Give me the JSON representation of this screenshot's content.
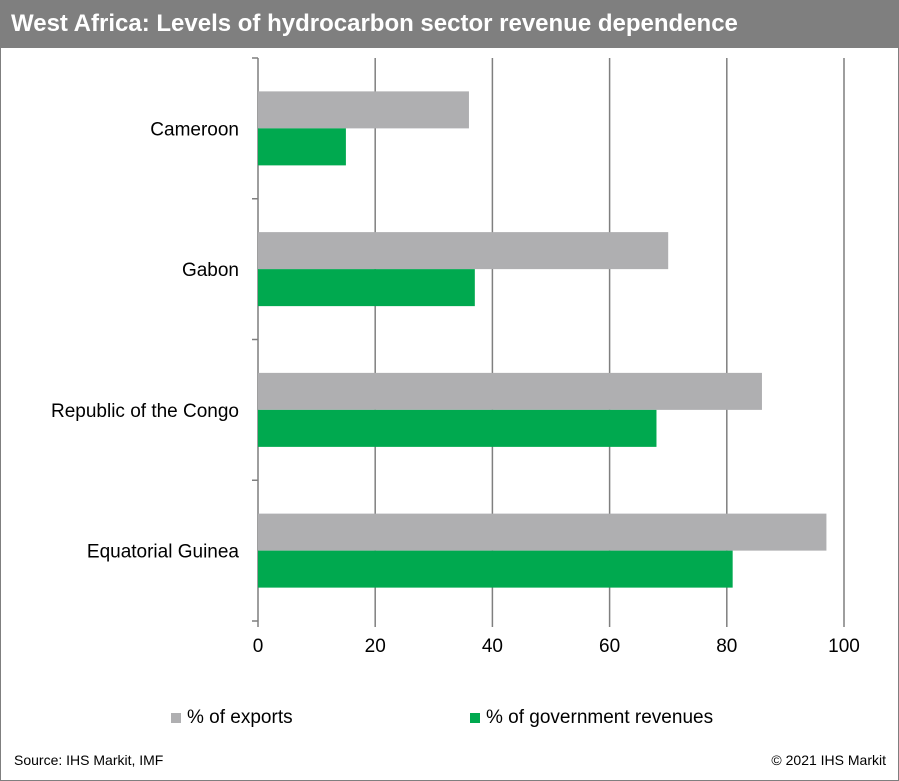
{
  "title": "West Africa: Levels of hydrocarbon sector revenue dependence",
  "source": "Source: IHS Markit, IMF",
  "copyright": "© 2021 IHS Markit",
  "colors": {
    "exports": "#afafb1",
    "government": "#00a94f",
    "grid": "#7f7f7f",
    "header": "#7f7f7f"
  },
  "chart_data": {
    "type": "bar",
    "orientation": "horizontal",
    "categories": [
      "Cameroon",
      "Gabon",
      "Republic of the Congo",
      "Equatorial Guinea"
    ],
    "series": [
      {
        "name": "% of exports",
        "values": [
          36,
          70,
          86,
          97
        ]
      },
      {
        "name": "% of government revenues",
        "values": [
          15,
          37,
          68,
          81
        ]
      }
    ],
    "xticks": [
      "0",
      "20",
      "40",
      "60",
      "80",
      "100"
    ],
    "xlim": [
      0,
      100
    ],
    "grid": true,
    "legend": "bottom"
  }
}
